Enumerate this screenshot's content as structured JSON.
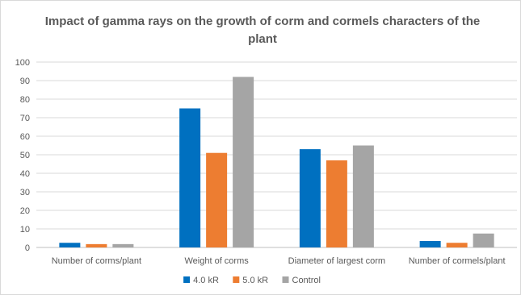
{
  "chart_data": {
    "type": "bar",
    "title": "Impact of gamma rays on the growth of corm and cormels characters of the plant",
    "xlabel": "",
    "ylabel": "",
    "ylim": [
      0,
      100
    ],
    "yticks": [
      0,
      10,
      20,
      30,
      40,
      50,
      60,
      70,
      80,
      90,
      100
    ],
    "grid": true,
    "legend_position": "bottom",
    "categories": [
      "Number of corms/plant",
      "Weight of corms",
      "Diameter of largest corm",
      "Number of cormels/plant"
    ],
    "series": [
      {
        "name": "4.0 kR",
        "color": "#0070c0",
        "values": [
          2.5,
          75,
          53,
          3.5
        ]
      },
      {
        "name": "5.0 kR",
        "color": "#ed7d31",
        "values": [
          1.8,
          51,
          47,
          2.5
        ]
      },
      {
        "name": "Control",
        "color": "#a5a5a5",
        "values": [
          1.8,
          92,
          55,
          7.5
        ]
      }
    ]
  }
}
